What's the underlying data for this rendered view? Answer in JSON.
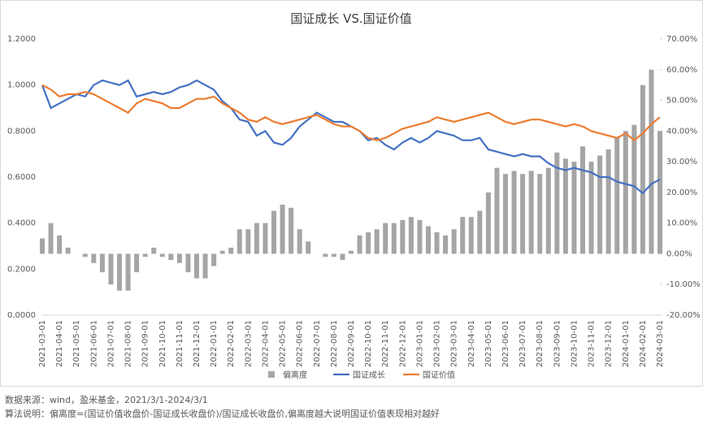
{
  "chart_data": {
    "type": "bar-line",
    "title": "国证成长 VS.国证价值",
    "categories": [
      "2021-03-01",
      null,
      "2021-04-01",
      null,
      "2021-05-01",
      null,
      "2021-06-01",
      null,
      "2021-07-01",
      null,
      "2021-08-01",
      null,
      "2021-09-01",
      null,
      "2021-10-01",
      null,
      "2021-11-01",
      null,
      "2021-12-01",
      null,
      "2022-01-01",
      null,
      "2022-02-01",
      null,
      "2022-03-01",
      null,
      "2022-04-01",
      null,
      "2022-05-01",
      null,
      "2022-06-01",
      null,
      "2022-07-01",
      null,
      "2022-08-01",
      null,
      "2022-09-01",
      null,
      "2022-10-01",
      null,
      "2022-11-01",
      null,
      "2022-12-01",
      null,
      "2023-01-01",
      null,
      "2023-02-01",
      null,
      "2023-03-01",
      null,
      "2023-04-01",
      null,
      "2023-05-01",
      null,
      "2023-06-01",
      null,
      "2023-07-01",
      null,
      "2023-08-01",
      null,
      "2023-09-01",
      null,
      "2023-10-01",
      null,
      "2023-11-01",
      null,
      "2023-12-01",
      null,
      "2024-01-01",
      null,
      "2024-02-01",
      null,
      "2024-03-01"
    ],
    "series": [
      {
        "name": "偏离度",
        "color": "#a5a5a5",
        "axis": "y2",
        "kind": "bar",
        "values": [
          5,
          10,
          6,
          2,
          0,
          -1,
          -3,
          -6,
          -10,
          -12,
          -12,
          -6,
          -1,
          2,
          -1,
          -2,
          -3,
          -6,
          -8,
          -8,
          -4,
          1,
          2,
          8,
          8,
          10,
          10,
          14,
          16,
          15,
          8,
          4,
          0,
          -1,
          -1,
          -2,
          1,
          6,
          7,
          8,
          10,
          10,
          11,
          12,
          11,
          9,
          7,
          6,
          8,
          12,
          12,
          14,
          20,
          28,
          26,
          27,
          26,
          27,
          26,
          28,
          33,
          31,
          30,
          35,
          30,
          32,
          34,
          38,
          40,
          42,
          55,
          60,
          40
        ]
      },
      {
        "name": "国证成长",
        "color": "#4472c4",
        "kind": "line",
        "values": [
          1.0,
          0.9,
          0.92,
          0.94,
          0.96,
          0.95,
          1.0,
          1.02,
          1.01,
          1.0,
          1.02,
          0.95,
          0.96,
          0.97,
          0.96,
          0.97,
          0.99,
          1.0,
          1.02,
          1.0,
          0.98,
          0.93,
          0.9,
          0.85,
          0.84,
          0.78,
          0.8,
          0.75,
          0.74,
          0.77,
          0.82,
          0.85,
          0.88,
          0.86,
          0.84,
          0.84,
          0.82,
          0.8,
          0.76,
          0.77,
          0.74,
          0.72,
          0.75,
          0.77,
          0.75,
          0.77,
          0.8,
          0.79,
          0.78,
          0.76,
          0.76,
          0.77,
          0.72,
          0.71,
          0.7,
          0.69,
          0.7,
          0.69,
          0.69,
          0.66,
          0.64,
          0.63,
          0.64,
          0.63,
          0.62,
          0.6,
          0.6,
          0.58,
          0.57,
          0.56,
          0.53,
          0.57,
          0.59
        ]
      },
      {
        "name": "国证价值",
        "color": "#ed7d31",
        "kind": "line",
        "values": [
          1.0,
          0.98,
          0.95,
          0.96,
          0.96,
          0.97,
          0.96,
          0.94,
          0.92,
          0.9,
          0.88,
          0.92,
          0.94,
          0.93,
          0.92,
          0.9,
          0.9,
          0.92,
          0.94,
          0.94,
          0.95,
          0.92,
          0.9,
          0.88,
          0.85,
          0.84,
          0.86,
          0.84,
          0.83,
          0.84,
          0.85,
          0.86,
          0.87,
          0.85,
          0.83,
          0.82,
          0.82,
          0.8,
          0.77,
          0.76,
          0.77,
          0.79,
          0.81,
          0.82,
          0.83,
          0.84,
          0.86,
          0.85,
          0.84,
          0.85,
          0.86,
          0.87,
          0.88,
          0.86,
          0.84,
          0.83,
          0.84,
          0.85,
          0.85,
          0.84,
          0.83,
          0.82,
          0.83,
          0.82,
          0.8,
          0.79,
          0.78,
          0.77,
          0.79,
          0.76,
          0.79,
          0.83,
          0.86
        ]
      }
    ],
    "ylim": [
      0,
      1.2
    ],
    "yticks": [
      {
        "value": 0,
        "label": "0.0000"
      },
      {
        "value": 0.2,
        "label": "0.2000"
      },
      {
        "value": 0.4,
        "label": "0.4000"
      },
      {
        "value": 0.6,
        "label": "0.6000"
      },
      {
        "value": 0.8,
        "label": "0.8000"
      },
      {
        "value": 1.0,
        "label": "1.0000"
      },
      {
        "value": 1.2,
        "label": "1.2000"
      }
    ],
    "y2lim": [
      -20,
      70
    ],
    "y2ticks": [
      {
        "value": -20,
        "label": "-20.00%"
      },
      {
        "value": -10,
        "label": "-10.00%"
      },
      {
        "value": 0,
        "label": "0.00%"
      },
      {
        "value": 10,
        "label": "10.00%"
      },
      {
        "value": 20,
        "label": "20.00%"
      },
      {
        "value": 30,
        "label": "30.00%"
      },
      {
        "value": 40,
        "label": "40.00%"
      },
      {
        "value": 50,
        "label": "50.00%"
      },
      {
        "value": 60,
        "label": "60.00%"
      },
      {
        "value": 70,
        "label": "70.00%"
      }
    ],
    "legend": "bottom",
    "notes": [
      "数据来源：wind，盈米基金，2021/3/1-2024/3/1",
      "算法说明：偏离度=(国证价值收盘价-国证成长收盘价)/国证成长收盘价,偏离度越大说明国证价值表现相对越好"
    ]
  }
}
